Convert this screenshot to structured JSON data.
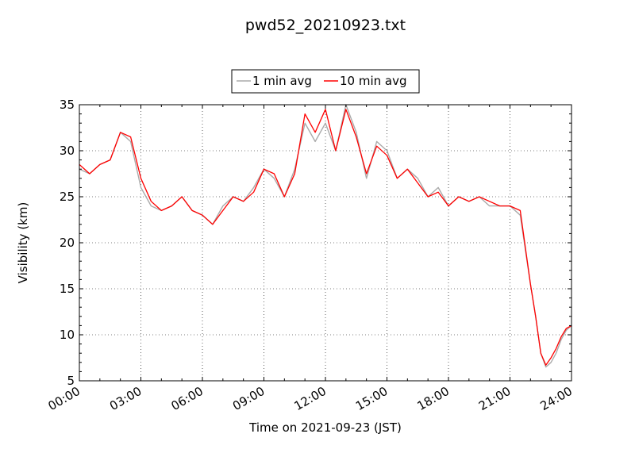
{
  "chart_data": {
    "type": "line",
    "title": "pwd52_20210923.txt",
    "xlabel": "Time on 2021-09-23 (JST)",
    "ylabel": "Visibility (km)",
    "xlim": [
      "00:00",
      "24:00"
    ],
    "ylim": [
      5,
      35
    ],
    "x_ticks": [
      "00:00",
      "03:00",
      "06:00",
      "09:00",
      "12:00",
      "15:00",
      "18:00",
      "21:00",
      "24:00"
    ],
    "y_ticks": [
      5,
      10,
      15,
      20,
      25,
      30,
      35
    ],
    "grid": true,
    "legend_position": "top-center",
    "series": [
      {
        "name": "1 min avg",
        "color": "#aaaaaa",
        "x": [
          "00:00",
          "00:30",
          "01:00",
          "01:30",
          "02:00",
          "02:30",
          "03:00",
          "03:30",
          "04:00",
          "04:30",
          "05:00",
          "05:30",
          "06:00",
          "06:30",
          "07:00",
          "07:30",
          "08:00",
          "08:30",
          "09:00",
          "09:30",
          "10:00",
          "10:30",
          "11:00",
          "11:30",
          "12:00",
          "12:30",
          "13:00",
          "13:30",
          "14:00",
          "14:30",
          "15:00",
          "15:30",
          "16:00",
          "16:30",
          "17:00",
          "17:30",
          "18:00",
          "18:30",
          "19:00",
          "19:30",
          "20:00",
          "20:30",
          "21:00",
          "21:30",
          "22:00",
          "22:15",
          "22:30",
          "22:45",
          "23:00",
          "23:15",
          "23:30",
          "23:45",
          "24:00"
        ],
        "values": [
          28,
          27.5,
          28.5,
          29,
          32,
          31,
          26,
          24,
          23.5,
          24,
          25,
          23.5,
          23,
          22,
          24,
          25,
          24.5,
          26,
          28,
          27,
          25,
          28,
          33,
          31,
          33,
          30,
          35,
          32,
          27,
          31,
          30,
          27,
          28,
          27,
          25,
          26,
          24,
          25,
          24.5,
          25,
          24,
          24,
          24,
          23,
          15.5,
          12,
          8,
          6.5,
          7,
          8,
          9.5,
          10.5,
          11
        ]
      },
      {
        "name": "10 min avg",
        "color": "#ff0000",
        "x": [
          "00:00",
          "00:30",
          "01:00",
          "01:30",
          "02:00",
          "02:30",
          "03:00",
          "03:30",
          "04:00",
          "04:30",
          "05:00",
          "05:30",
          "06:00",
          "06:30",
          "07:00",
          "07:30",
          "08:00",
          "08:30",
          "09:00",
          "09:30",
          "10:00",
          "10:30",
          "11:00",
          "11:30",
          "12:00",
          "12:30",
          "13:00",
          "13:30",
          "14:00",
          "14:30",
          "15:00",
          "15:30",
          "16:00",
          "16:30",
          "17:00",
          "17:30",
          "18:00",
          "18:30",
          "19:00",
          "19:30",
          "20:00",
          "20:30",
          "21:00",
          "21:30",
          "22:00",
          "22:15",
          "22:30",
          "22:45",
          "23:00",
          "23:15",
          "23:30",
          "23:45",
          "24:00"
        ],
        "values": [
          28.5,
          27.5,
          28.5,
          29,
          32,
          31.5,
          27,
          24.5,
          23.5,
          24,
          25,
          23.5,
          23,
          22,
          23.5,
          25,
          24.5,
          25.5,
          28,
          27.5,
          25,
          27.5,
          34,
          32,
          34.5,
          30,
          34.5,
          31.5,
          27.5,
          30.5,
          29.5,
          27,
          28,
          26.5,
          25,
          25.5,
          24,
          25,
          24.5,
          25,
          24.5,
          24,
          24,
          23.5,
          15.5,
          12,
          8,
          6.7,
          7.5,
          8.5,
          9.8,
          10.7,
          11
        ]
      }
    ]
  }
}
